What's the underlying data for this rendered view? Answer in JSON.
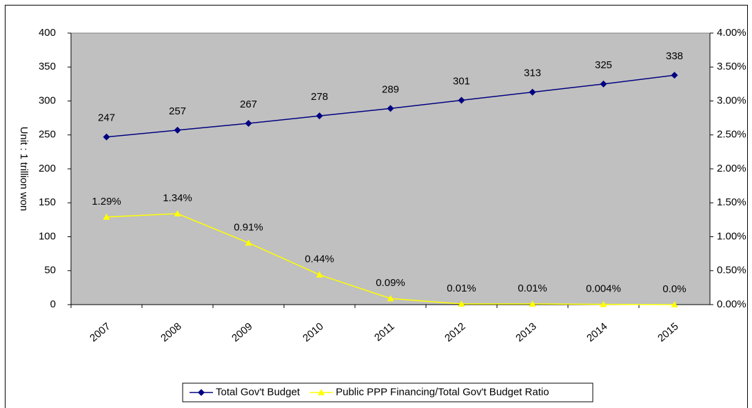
{
  "chart_data": {
    "type": "line",
    "categories": [
      "2007",
      "2008",
      "2009",
      "2010",
      "2011",
      "2012",
      "2013",
      "2014",
      "2015"
    ],
    "y_label": "Unit : 1 trillion won",
    "series": [
      {
        "name": "Total Gov't Budget",
        "color": "#000080",
        "marker": "diamond",
        "values": [
          247,
          257,
          267,
          278,
          289,
          301,
          313,
          325,
          338
        ]
      },
      {
        "name": "Public PPP Financing/Total Gov't Budget Ratio",
        "color": "#ffff00",
        "marker": "triangle",
        "axis": "y2",
        "values": [
          1.29,
          1.34,
          0.91,
          0.44,
          0.09,
          0.01,
          0.01,
          0.004,
          0.0
        ],
        "value_labels": [
          "1.29%",
          "1.34%",
          "0.91%",
          "0.44%",
          "0.09%",
          "0.01%",
          "0.01%",
          "0.004%",
          "0.0%"
        ]
      }
    ],
    "ylim": [
      0,
      400
    ],
    "yticks": [
      0,
      50,
      100,
      150,
      200,
      250,
      300,
      350,
      400
    ],
    "y2lim": [
      0,
      4
    ],
    "y2ticks": [
      {
        "value": 0,
        "label": "0.00%"
      },
      {
        "value": 0.5,
        "label": "0.50%"
      },
      {
        "value": 1,
        "label": "1.00%"
      },
      {
        "value": 1.5,
        "label": "1.50%"
      },
      {
        "value": 2,
        "label": "2.00%"
      },
      {
        "value": 2.5,
        "label": "2.50%"
      },
      {
        "value": 3,
        "label": "3.00%"
      },
      {
        "value": 3.5,
        "label": "3.50%"
      },
      {
        "value": 4,
        "label": "4.00%"
      }
    ],
    "grid": false,
    "plot_background": "#c0c0c0",
    "legend": "bottom"
  }
}
